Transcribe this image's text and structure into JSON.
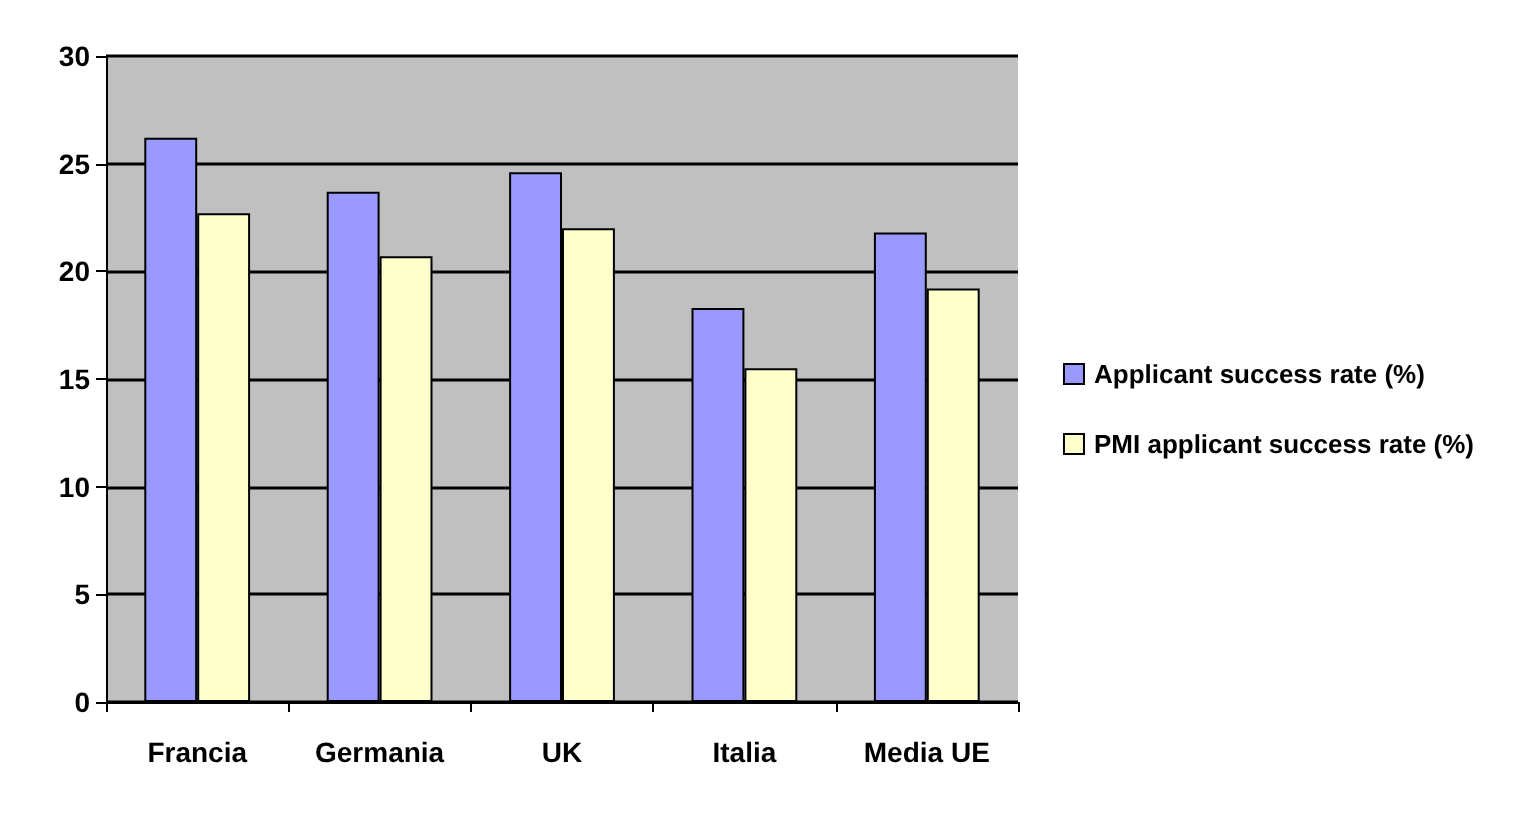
{
  "chart_data": {
    "type": "bar",
    "categories": [
      "Francia",
      "Germania",
      "UK",
      "Italia",
      "Media UE"
    ],
    "series": [
      {
        "name": "Applicant success rate (%)",
        "color": "#9999ff",
        "values": [
          26.2,
          23.7,
          24.6,
          18.3,
          21.8
        ]
      },
      {
        "name": "PMI applicant success rate (%)",
        "color": "#ffffcc",
        "values": [
          22.7,
          20.7,
          22.0,
          15.5,
          19.2
        ]
      }
    ],
    "ylim": [
      0,
      30
    ],
    "yticks": [
      0,
      5,
      10,
      15,
      20,
      25,
      30
    ],
    "grid": "y",
    "legend": "right"
  }
}
